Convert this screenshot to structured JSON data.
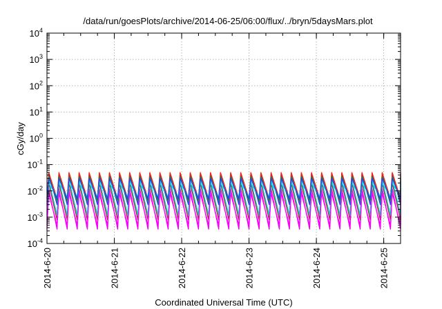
{
  "chart_data": {
    "type": "line",
    "title": "/data/run/goesPlots/archive/2014-06-25/06:00/flux/../bryn/5daysMars.plot",
    "xlabel": "Coordinated Universal Time (UTC)",
    "ylabel": "cGy/day",
    "yscale": "log",
    "ylim": [
      0.0001,
      10000
    ],
    "xlim": [
      "2014-06-20T00:00",
      "2014-06-25T06:00"
    ],
    "x_ticks": [
      "2014-6-20",
      "2014-6-21",
      "2014-6-22",
      "2014-6-23",
      "2014-6-24",
      "2014-6-25"
    ],
    "y_ticks": [
      {
        "base": "10",
        "exp": "-4"
      },
      {
        "base": "10",
        "exp": "-3"
      },
      {
        "base": "10",
        "exp": "-2"
      },
      {
        "base": "10",
        "exp": "-1"
      },
      {
        "base": "10",
        "exp": "0"
      },
      {
        "base": "10",
        "exp": "1"
      },
      {
        "base": "10",
        "exp": "2"
      },
      {
        "base": "10",
        "exp": "3"
      },
      {
        "base": "10",
        "exp": "4"
      }
    ],
    "grid": true,
    "cycle_hours": 3.6,
    "series": [
      {
        "color": "#ee00ee",
        "peak": 0.012,
        "trough": 0.00035
      },
      {
        "color": "#a52a2a",
        "peak": 0.02,
        "trough": 0.0008
      },
      {
        "color": "#00cccc",
        "peak": 0.025,
        "trough": 0.0012
      },
      {
        "color": "#3333ff",
        "peak": 0.045,
        "trough": 0.003
      },
      {
        "color": "#ff2200",
        "peak": 0.05,
        "trough": 0.005
      },
      {
        "color": "#228b22",
        "peak": 0.035,
        "trough": 0.004
      },
      {
        "color": "#00dddd",
        "peak": 0.02,
        "trough": 0.006
      },
      {
        "color": "#2244ee",
        "peak": 0.03,
        "trough": 0.005
      },
      {
        "color": "#ff00ff",
        "peak": 0.008,
        "trough": 0.0005
      }
    ]
  }
}
